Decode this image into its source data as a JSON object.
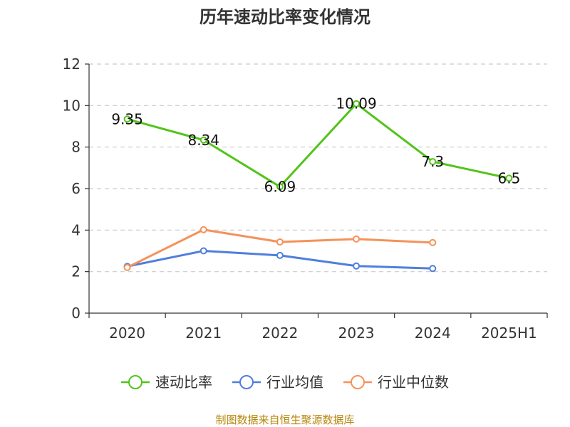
{
  "chart_data": {
    "type": "line",
    "title": "历年速动比率变化情况",
    "xlabel": "",
    "ylabel": "",
    "categories": [
      "2020",
      "2021",
      "2022",
      "2023",
      "2024",
      "2025H1"
    ],
    "ylim": [
      0,
      12
    ],
    "yticks": [
      0,
      2,
      4,
      6,
      8,
      10,
      12
    ],
    "grid": true,
    "legend_position": "bottom",
    "series": [
      {
        "name": "速动比率",
        "color": "#52c41a",
        "values": [
          9.35,
          8.34,
          6.09,
          10.09,
          7.3,
          6.5
        ],
        "labels": [
          "9.35",
          "8.34",
          "6.09",
          "10.09",
          "7.3",
          "6.5"
        ]
      },
      {
        "name": "行业均值",
        "color": "#4f7fdb",
        "values": [
          2.25,
          3.0,
          2.78,
          2.27,
          2.15,
          null
        ]
      },
      {
        "name": "行业中位数",
        "color": "#f5925a",
        "values": [
          2.2,
          4.02,
          3.43,
          3.57,
          3.4,
          null
        ]
      }
    ]
  },
  "source": "制图数据来自恒生聚源数据库"
}
